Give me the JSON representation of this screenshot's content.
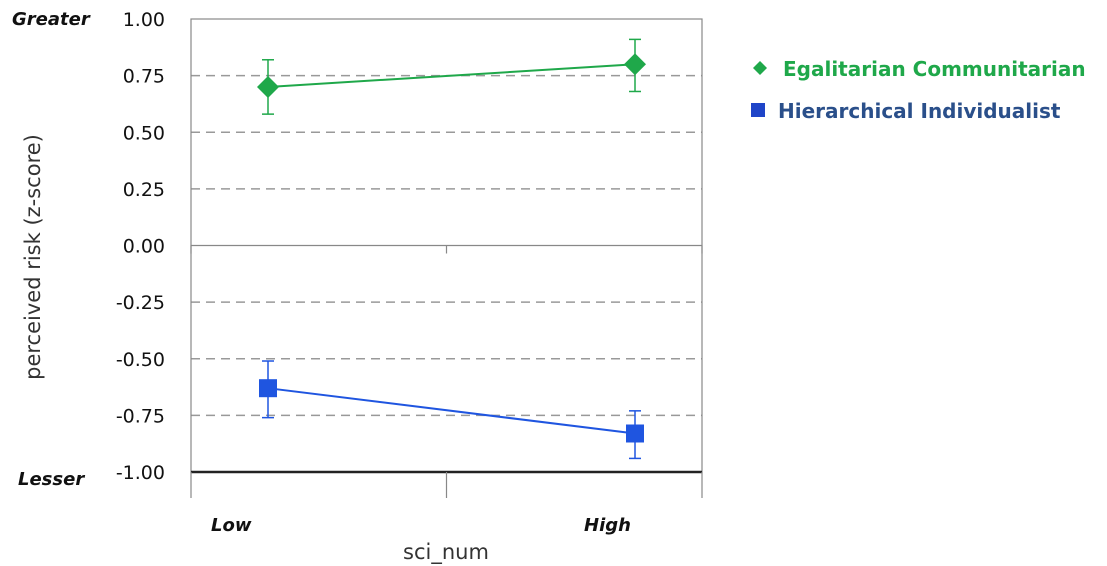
{
  "chart_data": {
    "type": "line",
    "categories": [
      "Low",
      "High"
    ],
    "x_tick_labels": [
      "Low",
      "High"
    ],
    "xlabel": "sci_num",
    "ylabel": "perceived risk (z-score)",
    "ylim": [
      -1.0,
      1.0
    ],
    "y_ticks": [
      1.0,
      0.75,
      0.5,
      0.25,
      0.0,
      -0.25,
      -0.5,
      -0.75,
      -1.0
    ],
    "y_tick_labels": [
      "1.00",
      "0.75",
      "0.50",
      "0.25",
      "0.00",
      "-0.25",
      "-0.50",
      "-0.75",
      "-1.00"
    ],
    "y_top_label": "Greater",
    "y_bottom_label": "Lesser",
    "grid": "horizontal dashed",
    "legend_position": "right",
    "series": [
      {
        "name": "Egalitarian Communitarian",
        "color": "#1fa84a",
        "marker": "diamond",
        "values": [
          0.7,
          0.8
        ],
        "error_low": [
          0.58,
          0.68
        ],
        "error_high": [
          0.82,
          0.91
        ]
      },
      {
        "name": "Hierarchical Individualist",
        "color": "#1f55e0",
        "marker": "square",
        "values": [
          -0.63,
          -0.83
        ],
        "error_low": [
          -0.76,
          -0.94
        ],
        "error_high": [
          -0.51,
          -0.73
        ]
      }
    ]
  }
}
